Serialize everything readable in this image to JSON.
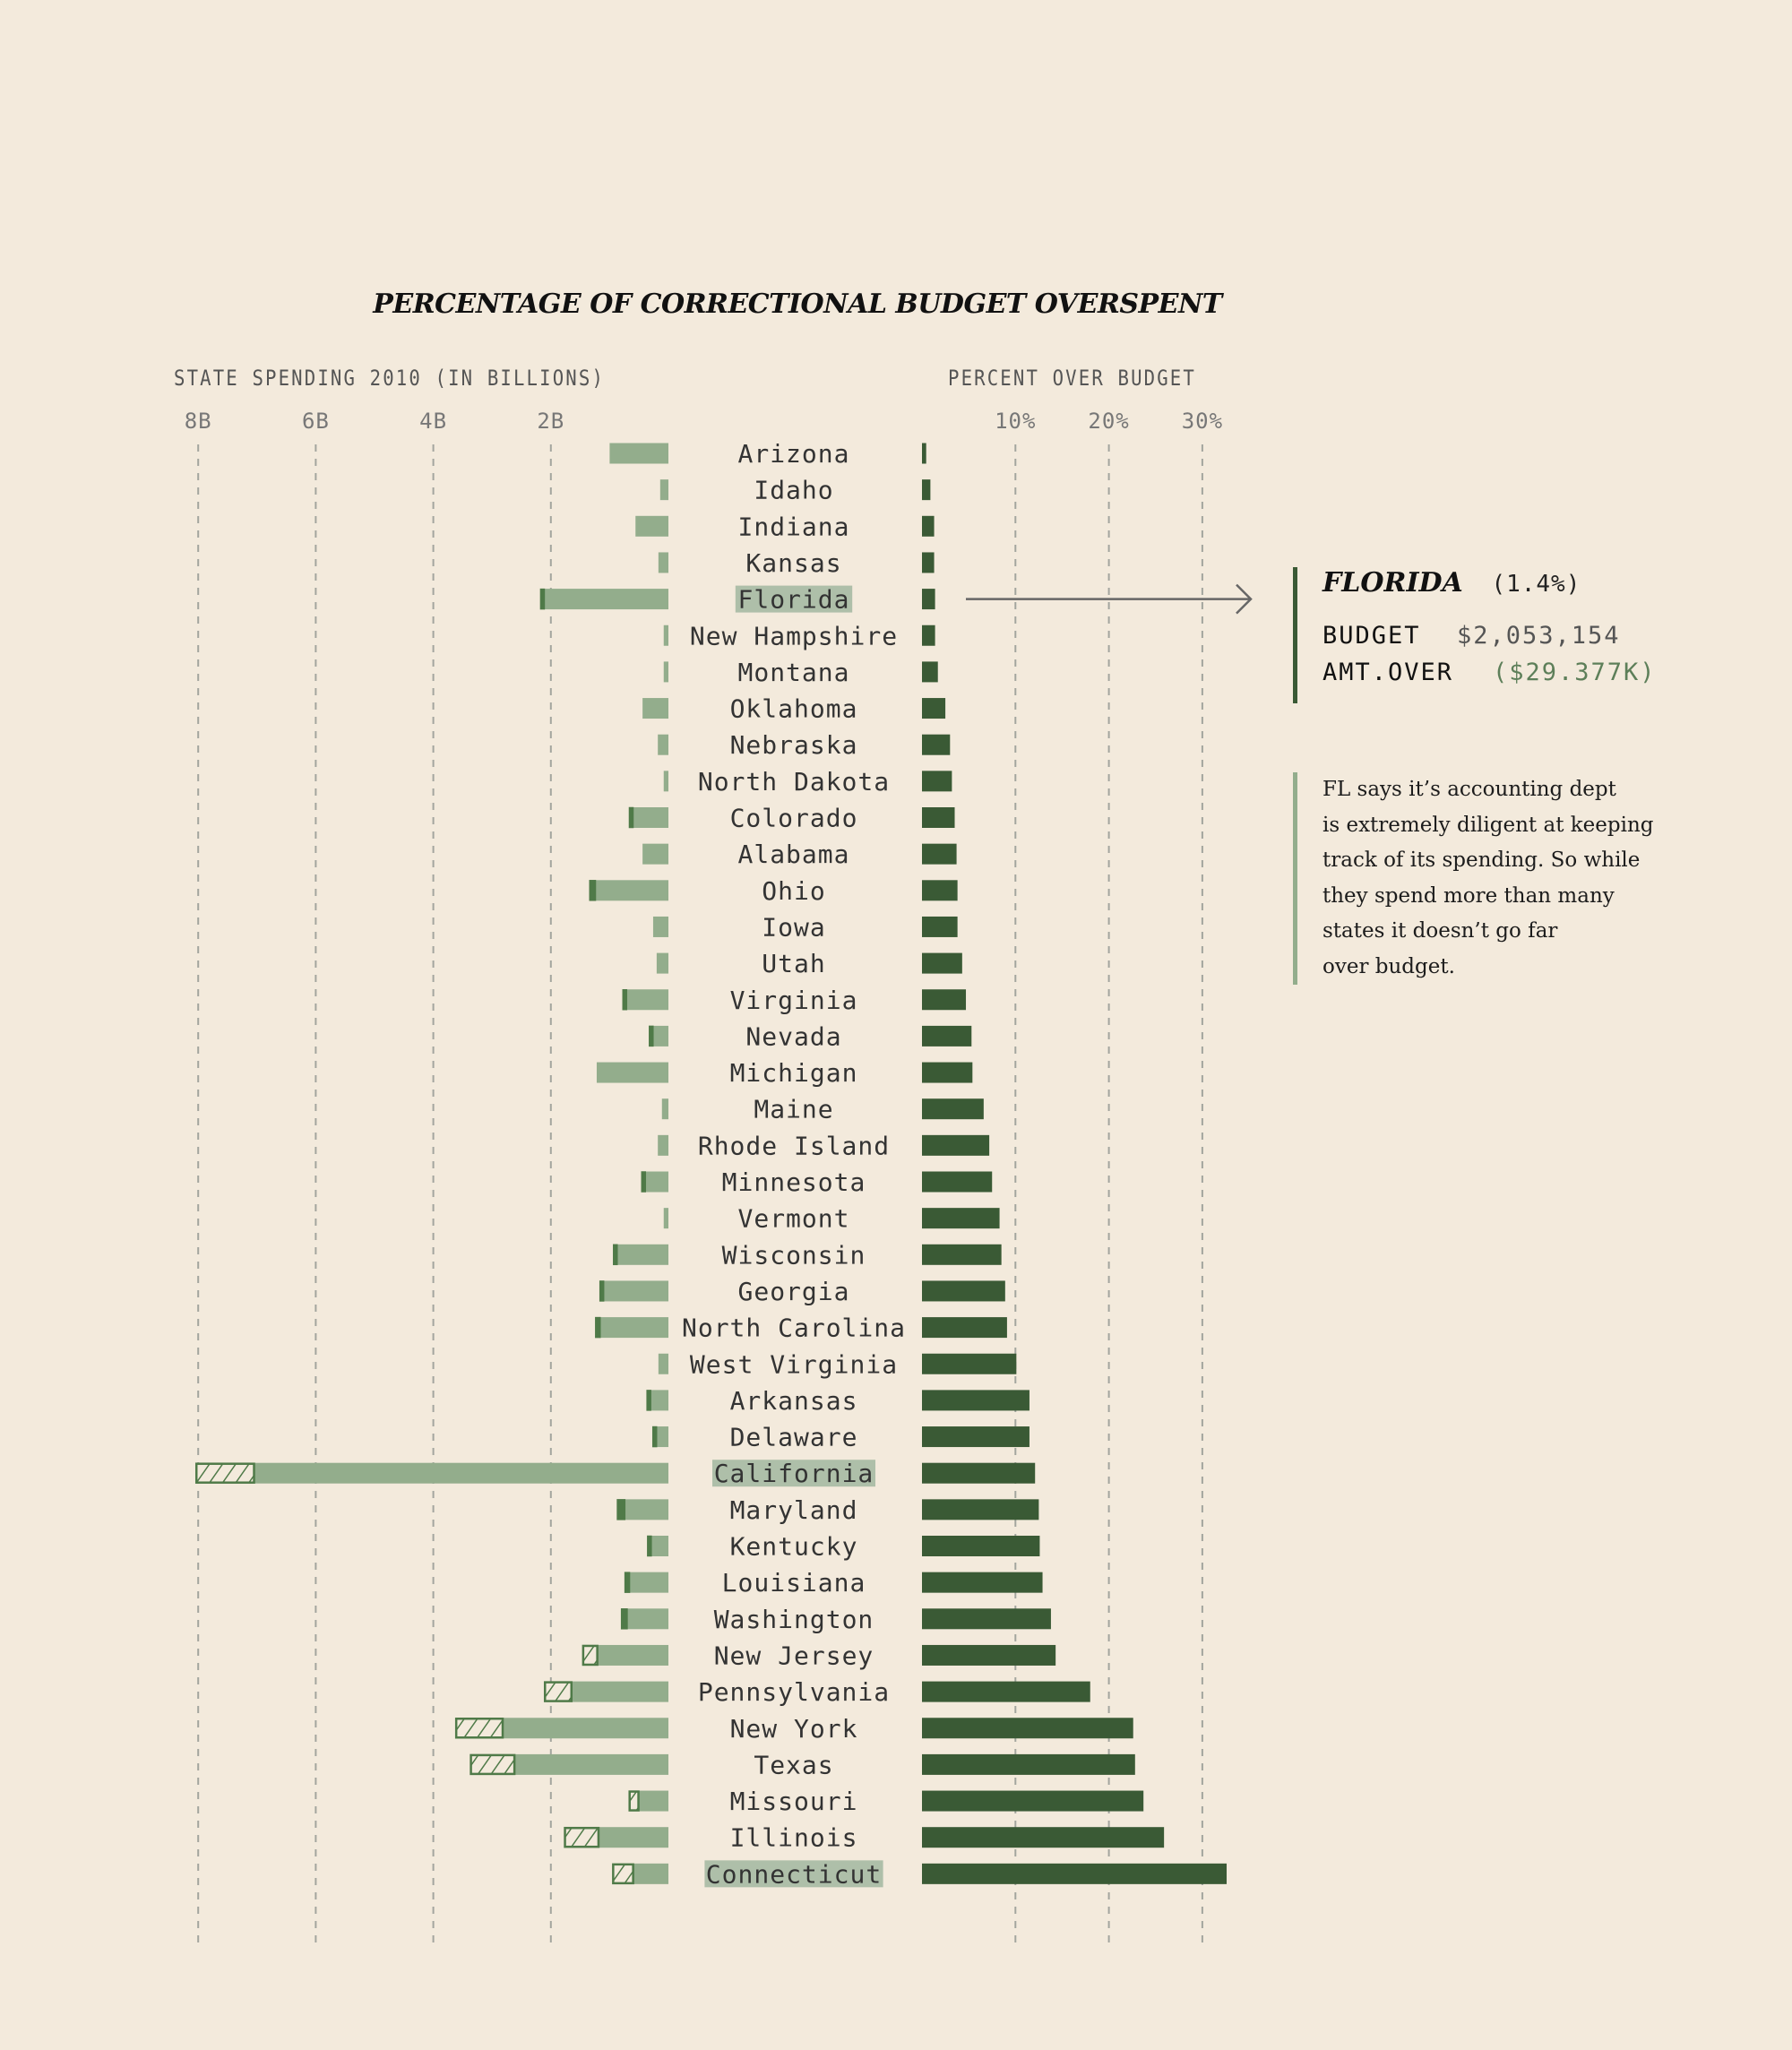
{
  "chart_data": {
    "type": "bar",
    "title": "PERCENTAGE OF CORRECTIONAL BUDGET OVERSPENT",
    "left_panel": {
      "xlabel": "STATE SPENDING 2010 (IN BILLIONS)",
      "tick_labels": [
        "8B",
        "6B",
        "4B",
        "2B"
      ],
      "ticks": [
        8,
        6,
        4,
        2
      ],
      "xlim": [
        0,
        8
      ],
      "direction": "right-to-left",
      "grid": true,
      "series": [
        {
          "name": "Spending (billions)",
          "color": "#93ad8c"
        },
        {
          "name": "Overspend (billions)",
          "color": "#4f7a48",
          "style": "hatched"
        }
      ]
    },
    "right_panel": {
      "xlabel": "PERCENT OVER BUDGET",
      "tick_labels": [
        "10%",
        "20%",
        "30%"
      ],
      "ticks": [
        10,
        20,
        30
      ],
      "xlim": [
        0,
        33
      ],
      "grid": true,
      "color": "#3a5a35"
    },
    "categories": [
      "Arizona",
      "Idaho",
      "Indiana",
      "Kansas",
      "Florida",
      "New Hampshire",
      "Montana",
      "Oklahoma",
      "Nebraska",
      "North Dakota",
      "Colorado",
      "Alabama",
      "Ohio",
      "Iowa",
      "Utah",
      "Virginia",
      "Nevada",
      "Michigan",
      "Maine",
      "Rhode Island",
      "Minnesota",
      "Vermont",
      "Wisconsin",
      "Georgia",
      "North Carolina",
      "West Virginia",
      "Arkansas",
      "Delaware",
      "California",
      "Maryland",
      "Kentucky",
      "Louisiana",
      "Washington",
      "New Jersey",
      "Pennsylvania",
      "New York",
      "Texas",
      "Missouri",
      "Illinois",
      "Connecticut"
    ],
    "highlighted": [
      "Florida",
      "California",
      "Connecticut"
    ],
    "spending_billions": [
      1.0,
      0.14,
      0.56,
      0.17,
      2.12,
      0.08,
      0.08,
      0.44,
      0.18,
      0.08,
      0.61,
      0.44,
      1.25,
      0.26,
      0.2,
      0.72,
      0.27,
      1.22,
      0.11,
      0.18,
      0.4,
      0.08,
      0.88,
      1.11,
      1.17,
      0.17,
      0.31,
      0.21,
      7.05,
      0.75,
      0.3,
      0.67,
      0.71,
      1.21,
      1.65,
      2.82,
      2.62,
      0.51,
      1.19,
      0.6
    ],
    "overspend_billions": [
      0,
      0,
      0,
      0,
      0.03,
      0,
      0,
      0,
      0,
      0,
      0.04,
      0,
      0.08,
      0,
      0,
      0.03,
      0.02,
      0,
      0,
      0,
      0.02,
      0,
      0.02,
      0.04,
      0.06,
      0,
      0.01,
      0.01,
      0.98,
      0.11,
      0.02,
      0.06,
      0.08,
      0.24,
      0.45,
      0.79,
      0.74,
      0.15,
      0.57,
      0.34
    ],
    "percent_over_budget": [
      0.45,
      0.9,
      1.3,
      1.3,
      1.4,
      1.4,
      1.7,
      2.5,
      3.0,
      3.2,
      3.5,
      3.7,
      3.8,
      3.8,
      4.3,
      4.7,
      5.3,
      5.4,
      6.6,
      7.2,
      7.5,
      8.3,
      8.5,
      8.9,
      9.1,
      10.1,
      11.5,
      11.5,
      12.1,
      12.5,
      12.6,
      12.9,
      13.8,
      14.3,
      18.0,
      22.6,
      22.8,
      23.7,
      25.9,
      32.6
    ]
  },
  "callout": {
    "state": "FLORIDA",
    "percent": "(1.4%)",
    "budget_label": "BUDGET",
    "budget_value": "$2,053,154",
    "over_label": "AMT.OVER",
    "over_value": "($29.377K)",
    "target_state": "Florida"
  },
  "note": {
    "lines": [
      "FL says it’s accounting dept",
      "is extremely diligent at keeping",
      "track of its spending. So while",
      "they spend more than many",
      "states it doesn’t go far",
      "over budget."
    ]
  },
  "colors": {
    "background": "#f3eadc",
    "spending": "#93ad8c",
    "overspend": "#4f7a48",
    "percent": "#3a5a35",
    "highlight": "#aebfa9",
    "grid": "#a3a59e"
  }
}
